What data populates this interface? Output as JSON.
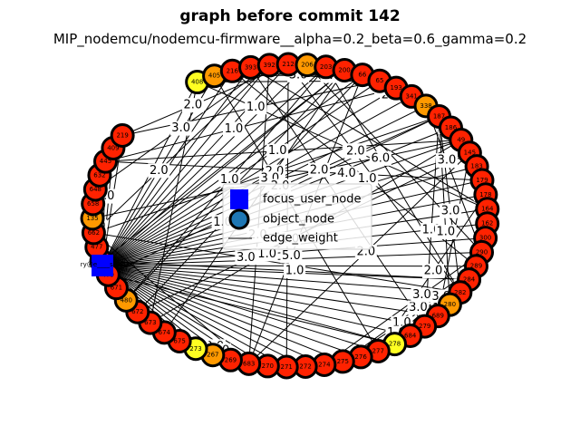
{
  "title": "graph before commit 142",
  "subtitle": "MIP_nodemcu/nodemcu-firmware__alpha=0.2_beta=0.6_gamma=0.2",
  "colors": {
    "red": "#ff2200",
    "orange": "#ff9900",
    "yellow": "#ffff22",
    "focus": "#0000ff",
    "legend_object": "#1f77b4"
  },
  "focus_node": {
    "label": "ry@e____s.org.uk"
  },
  "nodes": [
    {
      "label": "408",
      "c": "yellow"
    },
    {
      "label": "405",
      "c": "orange"
    },
    {
      "label": "216",
      "c": "red"
    },
    {
      "label": "393",
      "c": "red"
    },
    {
      "label": "392",
      "c": "red"
    },
    {
      "label": "212",
      "c": "red"
    },
    {
      "label": "206",
      "c": "orange"
    },
    {
      "label": "203",
      "c": "red"
    },
    {
      "label": "200",
      "c": "red"
    },
    {
      "label": "66",
      "c": "red"
    },
    {
      "label": "65",
      "c": "red"
    },
    {
      "label": "193",
      "c": "red"
    },
    {
      "label": "341",
      "c": "red"
    },
    {
      "label": "338",
      "c": "orange"
    },
    {
      "label": "187",
      "c": "red"
    },
    {
      "label": "186",
      "c": "red"
    },
    {
      "label": "49",
      "c": "red"
    },
    {
      "label": "145",
      "c": "red"
    },
    {
      "label": "183",
      "c": "red"
    },
    {
      "label": "179",
      "c": "red"
    },
    {
      "label": "178",
      "c": "red"
    },
    {
      "label": "164",
      "c": "red"
    },
    {
      "label": "162",
      "c": "red"
    },
    {
      "label": "300",
      "c": "red"
    },
    {
      "label": "290",
      "c": "red"
    },
    {
      "label": "289",
      "c": "red"
    },
    {
      "label": "284",
      "c": "red"
    },
    {
      "label": "282",
      "c": "red"
    },
    {
      "label": "280",
      "c": "orange"
    },
    {
      "label": "689",
      "c": "red"
    },
    {
      "label": "279",
      "c": "red"
    },
    {
      "label": "684",
      "c": "red"
    },
    {
      "label": "278",
      "c": "yellow"
    },
    {
      "label": "277",
      "c": "red"
    },
    {
      "label": "276",
      "c": "red"
    },
    {
      "label": "275",
      "c": "red"
    },
    {
      "label": "274",
      "c": "red"
    },
    {
      "label": "272",
      "c": "red"
    },
    {
      "label": "271",
      "c": "red"
    },
    {
      "label": "270",
      "c": "red"
    },
    {
      "label": "683",
      "c": "red"
    },
    {
      "label": "269",
      "c": "red"
    },
    {
      "label": "267",
      "c": "orange"
    },
    {
      "label": "273",
      "c": "yellow"
    },
    {
      "label": "675",
      "c": "red"
    },
    {
      "label": "674",
      "c": "red"
    },
    {
      "label": "673",
      "c": "red"
    },
    {
      "label": "672",
      "c": "red"
    },
    {
      "label": "480",
      "c": "orange"
    },
    {
      "label": "671",
      "c": "red"
    },
    {
      "label": "479",
      "c": "red"
    },
    {
      "label": "667",
      "c": "red"
    },
    {
      "label": "477",
      "c": "red"
    },
    {
      "label": "662",
      "c": "red"
    },
    {
      "label": "135",
      "c": "orange"
    },
    {
      "label": "658",
      "c": "red"
    },
    {
      "label": "648",
      "c": "red"
    },
    {
      "label": "632",
      "c": "red"
    },
    {
      "label": "445",
      "c": "red"
    },
    {
      "label": "409",
      "c": "red"
    },
    {
      "label": "219",
      "c": "red"
    }
  ],
  "edge_weight_labels": [
    "3.0",
    "2.0",
    "1.0",
    "2.0",
    "3.0",
    "1.0",
    "2.0",
    "1.0",
    "5.0",
    "3.0",
    "1.0",
    "2.0",
    "6.0",
    "1.0",
    "3.0",
    "2.0",
    "1.0",
    "3.0",
    "2.0",
    "1.0",
    "3.0",
    "2.0",
    "1.0",
    "3.0",
    "2.0",
    "1.0",
    "3.0",
    "1.0",
    "2.0",
    "4.0",
    "1.0",
    "1.0",
    "2.0",
    "1.0",
    "3.0",
    "1.0",
    "2.0",
    "3.0",
    "1.0",
    "2.0",
    "1.0",
    "3.0",
    "2.0",
    "1.0",
    "2.0",
    "1.0",
    "2.0",
    "3.0",
    "1.0",
    "1.0",
    "2.0",
    "3.0"
  ],
  "legend": {
    "focus_user_node": "focus_user_node",
    "object_node": "object_node",
    "edge_weight": "edge_weight"
  }
}
